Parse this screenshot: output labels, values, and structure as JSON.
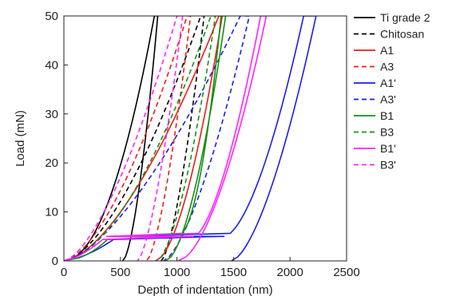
{
  "chart_data": {
    "type": "line",
    "title": "",
    "xlabel": "Depth of indentation (nm)",
    "ylabel": "Load (mN)",
    "xlim": [
      0,
      2500
    ],
    "ylim": [
      0,
      50
    ],
    "xticks": [
      0,
      500,
      1000,
      1500,
      2000,
      2500
    ],
    "yticks": [
      0,
      10,
      20,
      30,
      40,
      50
    ],
    "grid": false,
    "legend_position": "top-right outside plot",
    "series": [
      {
        "name": "Ti grade 2",
        "color": "#000000",
        "dash": "solid",
        "loading": {
          "h0": 0,
          "hmax": 800,
          "ymax": 50,
          "n": 2.0
        },
        "unloading": {
          "hf": 520,
          "hmax": 830,
          "ymax": 50,
          "n": 1.6
        },
        "pop_ins": []
      },
      {
        "name": "Chitosan",
        "color": "#000000",
        "dash": "dashed",
        "loading": {
          "h0": 0,
          "hmax": 1210,
          "ymax": 50,
          "n": 1.6
        },
        "unloading": {
          "hf": 860,
          "hmax": 1240,
          "ymax": 50,
          "n": 1.5
        },
        "pop_ins": []
      },
      {
        "name": "A1",
        "color": "#ee1c1c",
        "dash": "solid",
        "loading": {
          "h0": 0,
          "hmax": 1370,
          "ymax": 50,
          "n": 1.6
        },
        "unloading": {
          "hf": 810,
          "hmax": 1400,
          "ymax": 50,
          "n": 1.7
        },
        "pop_ins": []
      },
      {
        "name": "A3",
        "color": "#ee1c1c",
        "dash": "dashed",
        "loading": {
          "h0": 0,
          "hmax": 1090,
          "ymax": 50,
          "n": 1.6
        },
        "unloading": {
          "hf": 730,
          "hmax": 1120,
          "ymax": 50,
          "n": 1.5
        },
        "pop_ins": []
      },
      {
        "name": "A1'",
        "color": "#1c1cee",
        "dash": "solid",
        "loading": {
          "h0": 0,
          "hmax": 2120,
          "ymax": 50,
          "n": 1.55
        },
        "unloading": {
          "hf": 1480,
          "hmax": 2230,
          "ymax": 50,
          "n": 1.6
        },
        "pop_ins": [
          {
            "load": 5,
            "from": 1370,
            "to": 1420
          }
        ]
      },
      {
        "name": "A3'",
        "color": "#1c1cee",
        "dash": "dashed",
        "loading": {
          "h0": 0,
          "hmax": 1560,
          "ymax": 50,
          "n": 1.5
        },
        "unloading": {
          "hf": 880,
          "hmax": 1640,
          "ymax": 50,
          "n": 1.5
        },
        "pop_ins": []
      },
      {
        "name": "B1",
        "color": "#139113",
        "dash": "solid",
        "loading": {
          "h0": 0,
          "hmax": 1390,
          "ymax": 50,
          "n": 1.9
        },
        "unloading": {
          "hf": 900,
          "hmax": 1430,
          "ymax": 50,
          "n": 1.7
        },
        "pop_ins": [
          {
            "load": 5,
            "from": 940,
            "to": 1000
          }
        ]
      },
      {
        "name": "B3",
        "color": "#139113",
        "dash": "dashed",
        "loading": {
          "h0": 0,
          "hmax": 1300,
          "ymax": 50,
          "n": 1.7
        },
        "unloading": {
          "hf": 820,
          "hmax": 1340,
          "ymax": 50,
          "n": 1.6
        },
        "pop_ins": []
      },
      {
        "name": "B1'",
        "color": "#ff22ff",
        "dash": "solid",
        "loading": {
          "h0": 0,
          "hmax": 1740,
          "ymax": 50,
          "n": 1.5
        },
        "unloading": {
          "hf": 1010,
          "hmax": 1790,
          "ymax": 50,
          "n": 1.7
        },
        "pop_ins": [
          {
            "load": 5,
            "from": 1090,
            "to": 1150
          }
        ]
      },
      {
        "name": "B3'",
        "color": "#ff22ff",
        "dash": "dashed",
        "loading": {
          "h0": 0,
          "hmax": 1000,
          "ymax": 50,
          "n": 1.55
        },
        "unloading": {
          "hf": 650,
          "hmax": 1050,
          "ymax": 50,
          "n": 1.5
        },
        "pop_ins": []
      }
    ]
  }
}
